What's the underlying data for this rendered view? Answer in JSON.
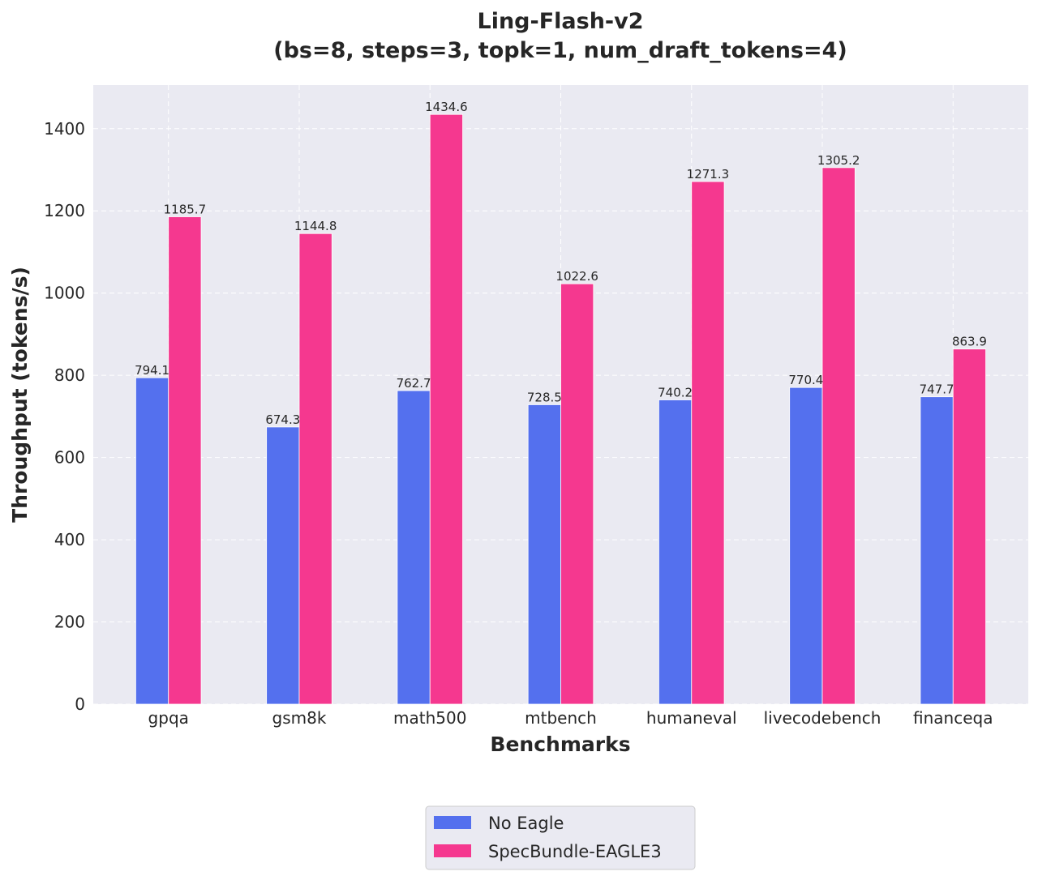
{
  "chart_data": {
    "type": "bar",
    "title": "Ling-Flash-v2",
    "subtitle": "(bs=8, steps=3, topk=1, num_draft_tokens=4)",
    "xlabel": "Benchmarks",
    "ylabel": "Throughput (tokens/s)",
    "categories": [
      "gpqa",
      "gsm8k",
      "math500",
      "mtbench",
      "humaneval",
      "livecodebench",
      "financeqa"
    ],
    "series": [
      {
        "name": "No Eagle",
        "color": "#5470ee",
        "values": [
          794.1,
          674.3,
          762.7,
          728.5,
          740.2,
          770.4,
          747.7
        ]
      },
      {
        "name": "SpecBundle-EAGLE3",
        "color": "#f5388f",
        "values": [
          1185.7,
          1144.8,
          1434.6,
          1022.6,
          1271.3,
          1305.2,
          863.9
        ]
      }
    ],
    "ylim": [
      0,
      1506
    ],
    "yticks": [
      0,
      200,
      400,
      600,
      800,
      1000,
      1200,
      1400
    ],
    "grid": true,
    "legend_position": "bottom-center",
    "background": "#eaeaf2"
  }
}
